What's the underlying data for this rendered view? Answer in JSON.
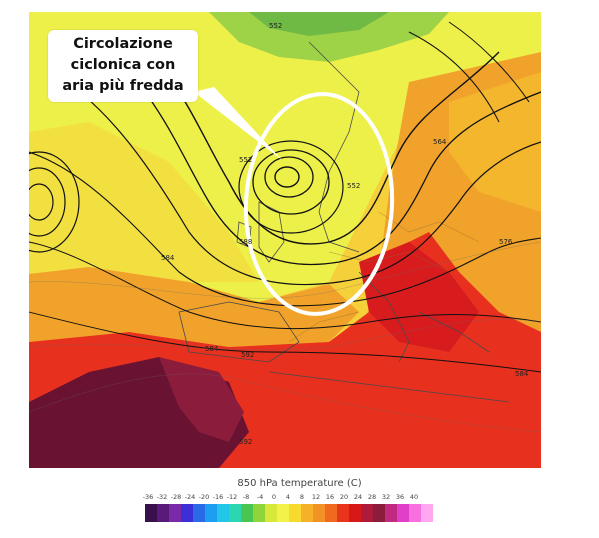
{
  "callout": {
    "text": "Circolazione\nciclonica con\naria più fredda"
  },
  "contour_labels": [
    "552",
    "552",
    "552",
    "564",
    "576",
    "584",
    "584",
    "584",
    "588",
    "592",
    "592"
  ],
  "legend": {
    "title": "850 hPa temperature  (C)",
    "ticks": [
      "-36",
      "-32",
      "-28",
      "-24",
      "-20",
      "-16",
      "-12",
      "-8",
      "-4",
      "0",
      "4",
      "8",
      "12",
      "16",
      "20",
      "24",
      "28",
      "32",
      "36",
      "40"
    ],
    "colors": [
      "#3a0f4e",
      "#5a1a78",
      "#7a2aa8",
      "#3b2fd6",
      "#2a6ae8",
      "#1e9ef0",
      "#22c6e8",
      "#2bd6b0",
      "#49c651",
      "#8ed43a",
      "#d8e83a",
      "#f2f24a",
      "#f8da2e",
      "#f6b12a",
      "#f39224",
      "#ef6a1e",
      "#e8351b",
      "#d81818",
      "#b01a3a",
      "#8c1c3c",
      "#c02a80",
      "#e040c8",
      "#f870e0",
      "#ffa8f0"
    ]
  },
  "colors": {
    "cold_green": "#7cc24a",
    "cool_yellow": "#eef04a",
    "mild_yellow": "#f6d03a",
    "warm_orange": "#f0a22a",
    "hot_red": "#e8301e",
    "hotter_red": "#c81a20",
    "hottest_maroon": "#6a1232",
    "ellipse_white": "#ffffff"
  }
}
